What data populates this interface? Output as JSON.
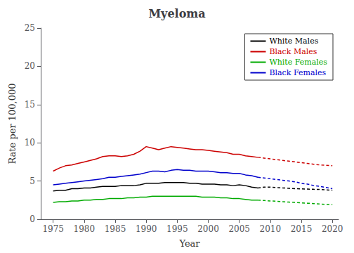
{
  "chart_data": {
    "type": "line",
    "title": "Myeloma",
    "xlabel": "Year",
    "ylabel": "Rate per 100,000",
    "xlim": [
      1973,
      2021
    ],
    "xticks": [
      1975,
      1980,
      1985,
      1990,
      1995,
      2000,
      2005,
      2010,
      2015,
      2020
    ],
    "ylim": [
      0,
      25
    ],
    "yticks": [
      0,
      5,
      10,
      15,
      20,
      25
    ],
    "grid": false,
    "legend": "upper right",
    "series": [
      {
        "name": "White Males",
        "color": "#000000",
        "line_style": "solid",
        "x": [
          1975,
          1976,
          1977,
          1978,
          1979,
          1980,
          1981,
          1982,
          1983,
          1984,
          1985,
          1986,
          1987,
          1988,
          1989,
          1990,
          1991,
          1992,
          1993,
          1994,
          1995,
          1996,
          1997,
          1998,
          1999,
          2000,
          2001,
          2002,
          2003,
          2004,
          2005,
          2006,
          2007,
          2008
        ],
        "values": [
          3.7,
          3.8,
          3.8,
          4.0,
          4.0,
          4.1,
          4.1,
          4.2,
          4.3,
          4.3,
          4.3,
          4.4,
          4.4,
          4.4,
          4.5,
          4.7,
          4.7,
          4.7,
          4.8,
          4.8,
          4.8,
          4.8,
          4.7,
          4.7,
          4.6,
          4.6,
          4.6,
          4.5,
          4.5,
          4.4,
          4.5,
          4.4,
          4.2,
          4.1
        ]
      },
      {
        "color": "#000000",
        "line_style": "dashed",
        "x": [
          2008,
          2009,
          2010,
          2011,
          2012,
          2013,
          2014,
          2015,
          2016,
          2017,
          2018,
          2019,
          2020
        ],
        "values": [
          4.1,
          4.2,
          4.2,
          4.15,
          4.1,
          4.05,
          4.0,
          3.98,
          3.95,
          3.92,
          3.9,
          3.85,
          3.8
        ]
      },
      {
        "name": "Black Males",
        "color": "#cc0000",
        "line_style": "solid",
        "x": [
          1975,
          1976,
          1977,
          1978,
          1979,
          1980,
          1981,
          1982,
          1983,
          1984,
          1985,
          1986,
          1987,
          1988,
          1989,
          1990,
          1991,
          1992,
          1993,
          1994,
          1995,
          1996,
          1997,
          1998,
          1999,
          2000,
          2001,
          2002,
          2003,
          2004,
          2005,
          2006,
          2007,
          2008
        ],
        "values": [
          6.3,
          6.7,
          7.0,
          7.1,
          7.3,
          7.5,
          7.7,
          7.9,
          8.2,
          8.3,
          8.3,
          8.2,
          8.3,
          8.5,
          8.9,
          9.5,
          9.3,
          9.1,
          9.3,
          9.5,
          9.4,
          9.3,
          9.2,
          9.1,
          9.1,
          9.0,
          8.9,
          8.8,
          8.7,
          8.5,
          8.5,
          8.3,
          8.2,
          8.1
        ]
      },
      {
        "color": "#cc0000",
        "line_style": "dashed",
        "x": [
          2008,
          2009,
          2010,
          2011,
          2012,
          2013,
          2014,
          2015,
          2016,
          2017,
          2018,
          2019,
          2020
        ],
        "values": [
          8.1,
          8.0,
          7.9,
          7.8,
          7.7,
          7.6,
          7.5,
          7.4,
          7.3,
          7.2,
          7.1,
          7.05,
          7.0
        ]
      },
      {
        "name": "White Females",
        "color": "#00aa00",
        "line_style": "solid",
        "x": [
          1975,
          1976,
          1977,
          1978,
          1979,
          1980,
          1981,
          1982,
          1983,
          1984,
          1985,
          1986,
          1987,
          1988,
          1989,
          1990,
          1991,
          1992,
          1993,
          1994,
          1995,
          1996,
          1997,
          1998,
          1999,
          2000,
          2001,
          2002,
          2003,
          2004,
          2005,
          2006,
          2007,
          2008
        ],
        "values": [
          2.2,
          2.3,
          2.3,
          2.4,
          2.4,
          2.5,
          2.5,
          2.6,
          2.6,
          2.7,
          2.7,
          2.7,
          2.8,
          2.8,
          2.9,
          2.9,
          3.0,
          3.0,
          3.0,
          3.0,
          3.0,
          3.0,
          3.0,
          3.0,
          2.9,
          2.9,
          2.9,
          2.8,
          2.8,
          2.7,
          2.7,
          2.6,
          2.5,
          2.5
        ]
      },
      {
        "color": "#00aa00",
        "line_style": "dashed",
        "x": [
          2008,
          2009,
          2010,
          2011,
          2012,
          2013,
          2014,
          2015,
          2016,
          2017,
          2018,
          2019,
          2020
        ],
        "values": [
          2.5,
          2.45,
          2.4,
          2.35,
          2.3,
          2.25,
          2.2,
          2.15,
          2.1,
          2.05,
          2.0,
          1.95,
          1.9
        ]
      },
      {
        "name": "Black Females",
        "color": "#0000cc",
        "line_style": "solid",
        "x": [
          1975,
          1976,
          1977,
          1978,
          1979,
          1980,
          1981,
          1982,
          1983,
          1984,
          1985,
          1986,
          1987,
          1988,
          1989,
          1990,
          1991,
          1992,
          1993,
          1994,
          1995,
          1996,
          1997,
          1998,
          1999,
          2000,
          2001,
          2002,
          2003,
          2004,
          2005,
          2006,
          2007,
          2008
        ],
        "values": [
          4.5,
          4.6,
          4.7,
          4.8,
          4.9,
          5.0,
          5.1,
          5.2,
          5.3,
          5.5,
          5.5,
          5.6,
          5.7,
          5.8,
          5.9,
          6.1,
          6.3,
          6.3,
          6.2,
          6.4,
          6.5,
          6.4,
          6.4,
          6.3,
          6.3,
          6.3,
          6.2,
          6.1,
          6.1,
          6.0,
          6.0,
          5.8,
          5.7,
          5.5
        ]
      },
      {
        "color": "#0000cc",
        "line_style": "dashed",
        "x": [
          2008,
          2009,
          2010,
          2011,
          2012,
          2013,
          2014,
          2015,
          2016,
          2017,
          2018,
          2019,
          2020
        ],
        "values": [
          5.5,
          5.4,
          5.3,
          5.2,
          5.1,
          5.0,
          4.9,
          4.7,
          4.6,
          4.4,
          4.3,
          4.15,
          4.0
        ]
      }
    ]
  }
}
